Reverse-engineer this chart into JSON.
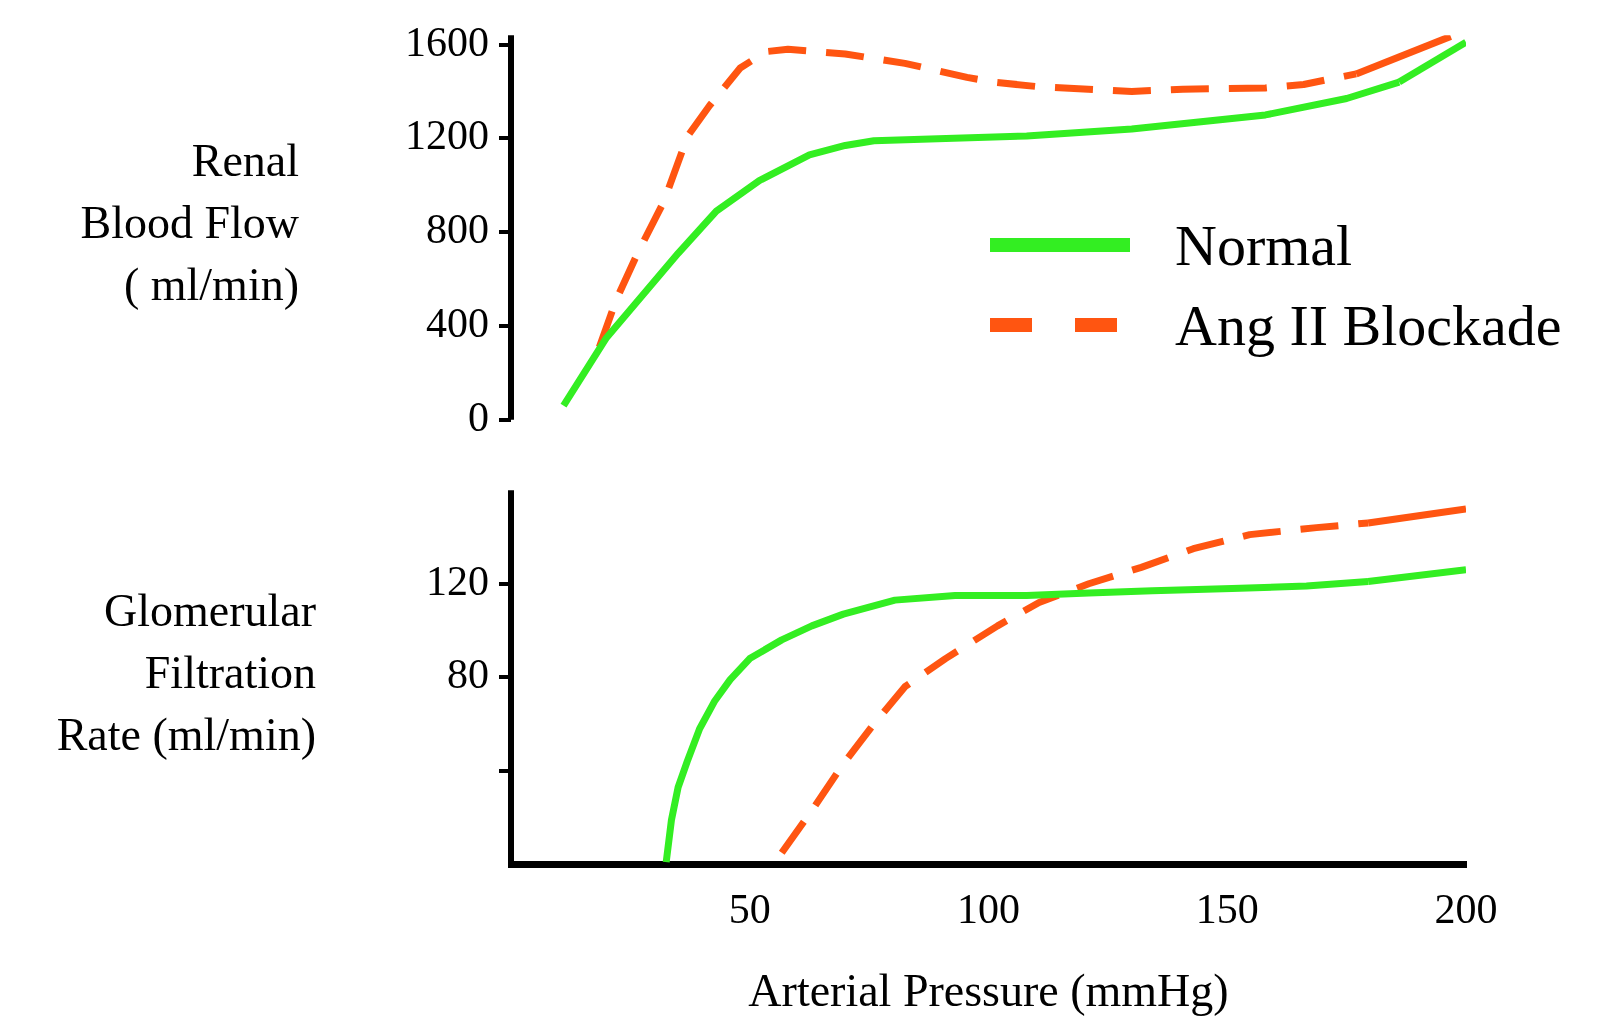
{
  "chart_data": [
    {
      "type": "line",
      "ylabel": "Renal\nBlood Flow\n( ml/min)",
      "xlim": [
        0,
        200
      ],
      "ylim": [
        0,
        1640
      ],
      "yticks": [
        0,
        400,
        800,
        1200,
        1600
      ],
      "tick_labels": "y",
      "grid": false,
      "legend": "right",
      "marker": "none",
      "series": [
        {
          "name": "Normal",
          "color": "#33ee22",
          "line_style": "solid",
          "x": [
            11,
            20,
            35,
            43,
            52,
            62.5,
            70,
            76,
            108,
            130,
            158,
            175,
            186,
            200
          ],
          "values": [
            60,
            350,
            710,
            890,
            1020,
            1130,
            1170,
            1190,
            1210,
            1240,
            1300,
            1370,
            1440,
            1610
          ]
        },
        {
          "name": "Ang II Blockade",
          "color": "#ff5511",
          "line_style": "dashed",
          "x": [
            18.5,
            22,
            26.5,
            32,
            37,
            41.6,
            48,
            53.4,
            58,
            70,
            82.5,
            95.5,
            101,
            110.6,
            130,
            140.7,
            158,
            166,
            177,
            196.8
          ],
          "values": [
            310,
            510,
            710,
            930,
            1210,
            1340,
            1500,
            1570,
            1580,
            1560,
            1520,
            1460,
            1440,
            1420,
            1400,
            1410,
            1415,
            1430,
            1475,
            1635
          ]
        }
      ]
    },
    {
      "type": "line",
      "xlabel": "Arterial Pressure (mmHg)",
      "ylabel": "Glomerular\nFiltration\nRate (ml/min)",
      "xlim": [
        0,
        200
      ],
      "xticks": [
        50,
        100,
        150,
        200
      ],
      "ylim": [
        0,
        160
      ],
      "yticks": [
        {
          "value": 40,
          "label": null
        },
        80,
        120
      ],
      "grid": false,
      "legend": false,
      "marker": "none",
      "series": [
        {
          "color": "#33ee22",
          "line_style": "solid",
          "x": [
            32.5,
            33.6,
            35,
            36.9,
            39.5,
            42.7,
            45.9,
            50,
            56.7,
            63,
            69.6,
            80.4,
            93,
            108,
            121,
            134.3,
            151,
            166.6,
            179.5,
            200
          ],
          "values": [
            1,
            19,
            33,
            44,
            58,
            70,
            79,
            88,
            96,
            102,
            107,
            113,
            115,
            115,
            116,
            117,
            118,
            119,
            121,
            126
          ]
        },
        {
          "color": "#ff5511",
          "line_style": "dashed",
          "x": [
            56.7,
            63,
            69.6,
            76,
            82.5,
            91,
            101.9,
            110.6,
            121,
            132,
            142.9,
            154.7,
            168.7,
            179.5,
            200
          ],
          "values": [
            5,
            23,
            43,
            60,
            76,
            88,
            102,
            112,
            120,
            127,
            135,
            141,
            144,
            146,
            152
          ]
        }
      ]
    }
  ]
}
